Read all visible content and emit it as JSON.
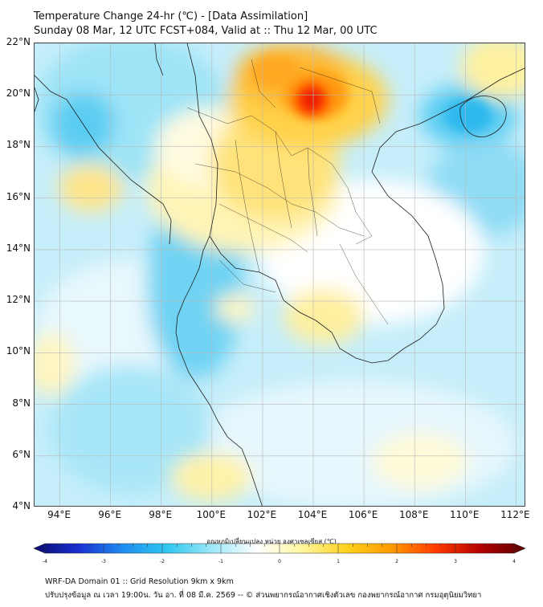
{
  "title": {
    "line1": "Temperature Change 24-hr (℃) - [Data Assimilation]",
    "line2": "Sunday 08 Mar, 12 UTC FCST+084, Valid at :: Thu 12 Mar, 00 UTC"
  },
  "map": {
    "lat_labels": [
      "22°N",
      "20°N",
      "18°N",
      "16°N",
      "14°N",
      "12°N",
      "10°N",
      "8°N",
      "6°N",
      "4°N"
    ],
    "lon_labels": [
      "94°E",
      "96°E",
      "98°E",
      "100°E",
      "102°E",
      "104°E",
      "106°E",
      "108°E",
      "110°E",
      "112°E"
    ],
    "lat_range": [
      4,
      22
    ],
    "lon_range": [
      93,
      112.4
    ],
    "grid": true
  },
  "colorbar": {
    "label": "อุณหภูมิเปลี่ยนแปลง หน่วย องศาเซลเซียส (℃)",
    "ticks": [
      "-4",
      "-3",
      "-2",
      "-1",
      "0",
      "1",
      "2",
      "3",
      "4"
    ],
    "range": [
      -4,
      4
    ],
    "colors": [
      "#0a0a6e",
      "#1a2fd0",
      "#1f8ef0",
      "#30c8f0",
      "#9ee8f8",
      "#ffffff",
      "#fff6a0",
      "#ffd21e",
      "#ff9a00",
      "#ff3a00",
      "#b30000",
      "#5a0000"
    ]
  },
  "footer": {
    "line1": "WRF-DA Domain 01 :: Grid Resolution 9km x 9km",
    "line2": "ปรับปรุงข้อมูล ณ เวลา 19:00น. วัน อา. ที่ 08 มี.ค. 2569 -- © ส่วนพยากรณ์อากาศเชิงตัวเลข กองพยากรณ์อากาศ กรมอุตุนิยมวิทยา"
  }
}
